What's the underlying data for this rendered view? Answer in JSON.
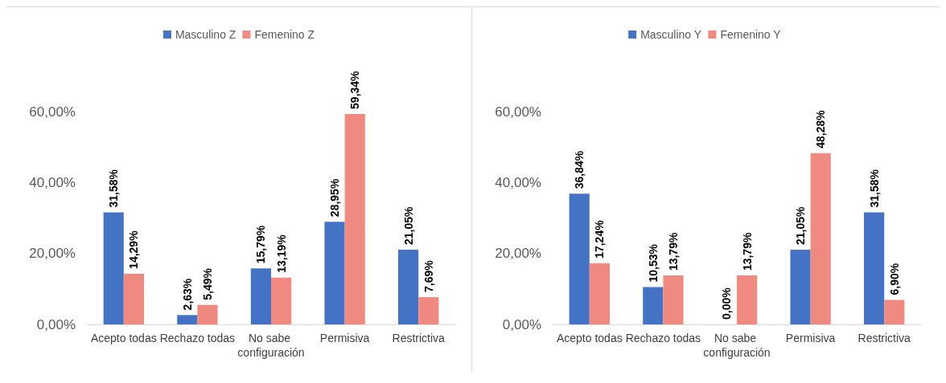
{
  "chart_data": [
    {
      "type": "bar",
      "categories": [
        "Acepto todas",
        "Rechazo todas",
        "No sabe configuración",
        "Permisiva",
        "Restrictiva"
      ],
      "series": [
        {
          "name": "Masculino Z",
          "color": "#4472c4",
          "values": [
            31.58,
            2.63,
            15.79,
            28.95,
            21.05
          ],
          "value_labels": [
            "31,58%",
            "2,63%",
            "15,79%",
            "28,95%",
            "21,05%"
          ]
        },
        {
          "name": "Femenino Z",
          "color": "#f08a80",
          "values": [
            14.29,
            5.49,
            13.19,
            59.34,
            7.69
          ],
          "value_labels": [
            "14,29%",
            "5,49%",
            "13,19%",
            "59,34%",
            "7,69%"
          ]
        }
      ],
      "ylim": [
        0,
        60
      ],
      "yticks": [
        {
          "value": 0,
          "label": "0,00%"
        },
        {
          "value": 20,
          "label": "20,00%"
        },
        {
          "value": 40,
          "label": "40,00%"
        },
        {
          "value": 60,
          "label": "60,00%"
        }
      ],
      "legend": "top",
      "grid": false
    },
    {
      "type": "bar",
      "categories": [
        "Acepto todas",
        "Rechazo todas",
        "No sabe configuración",
        "Permisiva",
        "Restrictiva"
      ],
      "series": [
        {
          "name": "Masculino Y",
          "color": "#4472c4",
          "values": [
            36.84,
            10.53,
            0,
            21.05,
            31.58
          ],
          "value_labels": [
            "36,84%",
            "10,53%",
            "0,00%",
            "21,05%",
            "31,58%"
          ]
        },
        {
          "name": "Femenino Y",
          "color": "#f08a80",
          "values": [
            17.24,
            13.79,
            13.79,
            48.28,
            6.9
          ],
          "value_labels": [
            "17,24%",
            "13,79%",
            "13,79%",
            "48,28%",
            "6,90%"
          ]
        }
      ],
      "ylim": [
        0,
        60
      ],
      "yticks": [
        {
          "value": 0,
          "label": "0,00%"
        },
        {
          "value": 20,
          "label": "20,00%"
        },
        {
          "value": 40,
          "label": "40,00%"
        },
        {
          "value": 60,
          "label": "60,00%"
        }
      ],
      "legend": "top",
      "grid": false
    }
  ]
}
